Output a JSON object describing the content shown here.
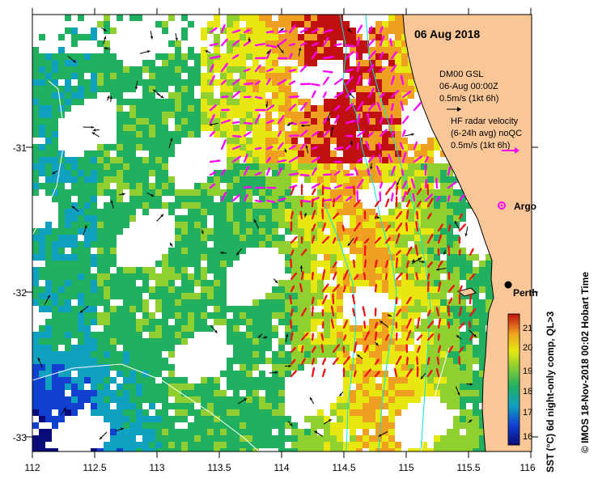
{
  "title": "06 Aug 2018",
  "legend": {
    "glider": {
      "line1": "DM00 GSL",
      "line2": "06-Aug 00:00Z",
      "line3": "0.5m/s (1kt 6h)"
    },
    "radar": {
      "line1": "HF radar velocity",
      "line2": "(6-24h avg) noQC",
      "line3": "0.5m/s (1kt 6h)"
    }
  },
  "locations": {
    "argo": "Argo",
    "perth": "Perth"
  },
  "axes": {
    "x_ticks": [
      "112",
      "112.5",
      "113",
      "113.5",
      "114",
      "114.5",
      "115",
      "115.5",
      "116"
    ],
    "y_ticks": [
      "-31",
      "-32",
      "-33"
    ]
  },
  "colorbar": {
    "ticks": [
      "21",
      "20",
      "19",
      "18",
      "17",
      "16"
    ],
    "label": "SST (°C) 6d night-only comp, QL>3"
  },
  "credit": "© IMOS 18-Nov-2018 00:02 Hobart Time",
  "colors": {
    "land": "#f9c698",
    "glider_arrow": "#ff00ff",
    "radar_arrow": "#ee1111",
    "contour": "#00e5e5"
  }
}
